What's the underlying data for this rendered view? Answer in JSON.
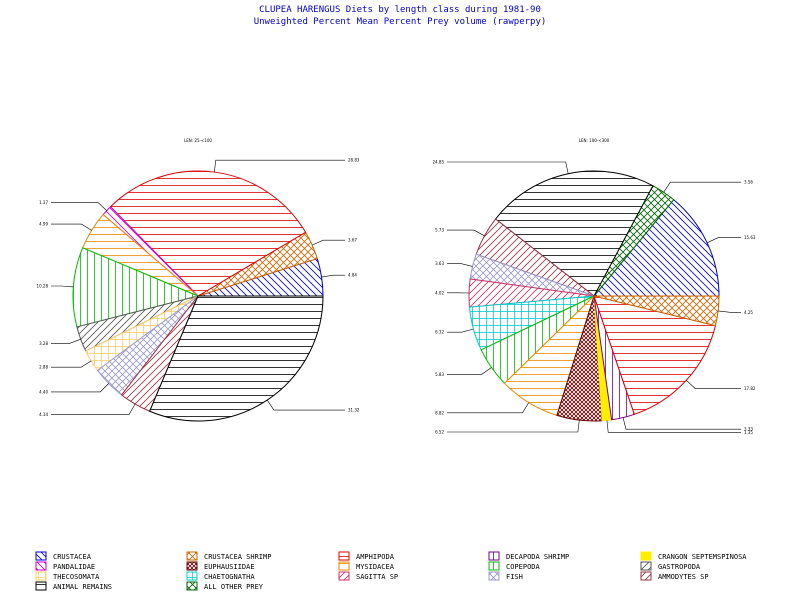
{
  "title": "CLUPEA HARENGUS  Diets by length class during 1981-90",
  "subtitle": "Unweighted Percent Mean Percent Prey  volume (rawperpy)",
  "chart_data": [
    {
      "type": "pie",
      "label": "LEN: 25-<100",
      "slices": [
        {
          "category": "CRUSTACEA",
          "value": 4.84
        },
        {
          "category": "CRUSTACEA SHRIMP",
          "value": 3.67
        },
        {
          "category": "AMPHIPODA",
          "value": 28.83
        },
        {
          "category": "PANDALIDAE",
          "value": 1.37
        },
        {
          "category": "MYSIDACEA",
          "value": 4.99
        },
        {
          "category": "COPEPODA",
          "value": 10.28
        },
        {
          "category": "GASTROPODA",
          "value": 3.28
        },
        {
          "category": "THECOSOMATA",
          "value": 2.88
        },
        {
          "category": "FISH",
          "value": 4.4
        },
        {
          "category": "AMMODYTES SP",
          "value": 4.14
        },
        {
          "category": "ANIMAL REMAINS",
          "value": 31.32
        }
      ]
    },
    {
      "type": "pie",
      "label": "LEN: 100-<300",
      "slices": [
        {
          "category": "CRUSTACEA",
          "value": 15.63
        },
        {
          "category": "ALL OTHER PREY",
          "value": 3.56
        },
        {
          "category": "ANIMAL REMAINS",
          "value": 24.85
        },
        {
          "category": "AMMODYTES SP",
          "value": 5.73
        },
        {
          "category": "FISH",
          "value": 3.63
        },
        {
          "category": "SAGITTA SP",
          "value": 4.02
        },
        {
          "category": "CHAETOGNATHA",
          "value": 6.32
        },
        {
          "category": "COPEPODA",
          "value": 5.83
        },
        {
          "category": "MYSIDACEA",
          "value": 8.82
        },
        {
          "category": "EUPHAUSIIDAE",
          "value": 6.52
        },
        {
          "category": "CRANGON SEPTEMSPINOSA",
          "value": 1.35
        },
        {
          "category": "DECAPODA SHRIMP",
          "value": 3.33
        },
        {
          "category": "AMPHIPODA",
          "value": 17.82
        },
        {
          "category": "CRUSTACEA SHRIMP",
          "value": 4.25
        }
      ]
    }
  ],
  "legend": [
    {
      "name": "CRUSTACEA",
      "color": "#0000cc",
      "pattern": "diag-down"
    },
    {
      "name": "CRUSTACEA SHRIMP",
      "color": "#cc6600",
      "pattern": "cross"
    },
    {
      "name": "AMPHIPODA",
      "color": "#dd0000",
      "pattern": "horiz"
    },
    {
      "name": "DECAPODA SHRIMP",
      "color": "#770088",
      "pattern": "vert"
    },
    {
      "name": "CRANGON SEPTEMSPINOSA",
      "color": "#ffee00",
      "pattern": "solid"
    },
    {
      "name": "PANDALIDAE",
      "color": "#cc00cc",
      "pattern": "diag-down"
    },
    {
      "name": "EUPHAUSIIDAE",
      "color": "#660000",
      "pattern": "crosshatch-dense"
    },
    {
      "name": "MYSIDACEA",
      "color": "#ee8800",
      "pattern": "horiz"
    },
    {
      "name": "COPEPODA",
      "color": "#00bb00",
      "pattern": "vert"
    },
    {
      "name": "GASTROPODA",
      "color": "#555555",
      "pattern": "diag-up"
    },
    {
      "name": "THECOSOMATA",
      "color": "#ffcc66",
      "pattern": "grid"
    },
    {
      "name": "CHAETOGNATHA",
      "color": "#00cccc",
      "pattern": "grid"
    },
    {
      "name": "SAGITTA SP",
      "color": "#cc3366",
      "pattern": "diag-up"
    },
    {
      "name": "FISH",
      "color": "#9999cc",
      "pattern": "cross"
    },
    {
      "name": "AMMODYTES SP",
      "color": "#993344",
      "pattern": "diag-up"
    },
    {
      "name": "ANIMAL REMAINS",
      "color": "#000000",
      "pattern": "horiz"
    },
    {
      "name": "ALL OTHER PREY",
      "color": "#006600",
      "pattern": "cross"
    }
  ]
}
